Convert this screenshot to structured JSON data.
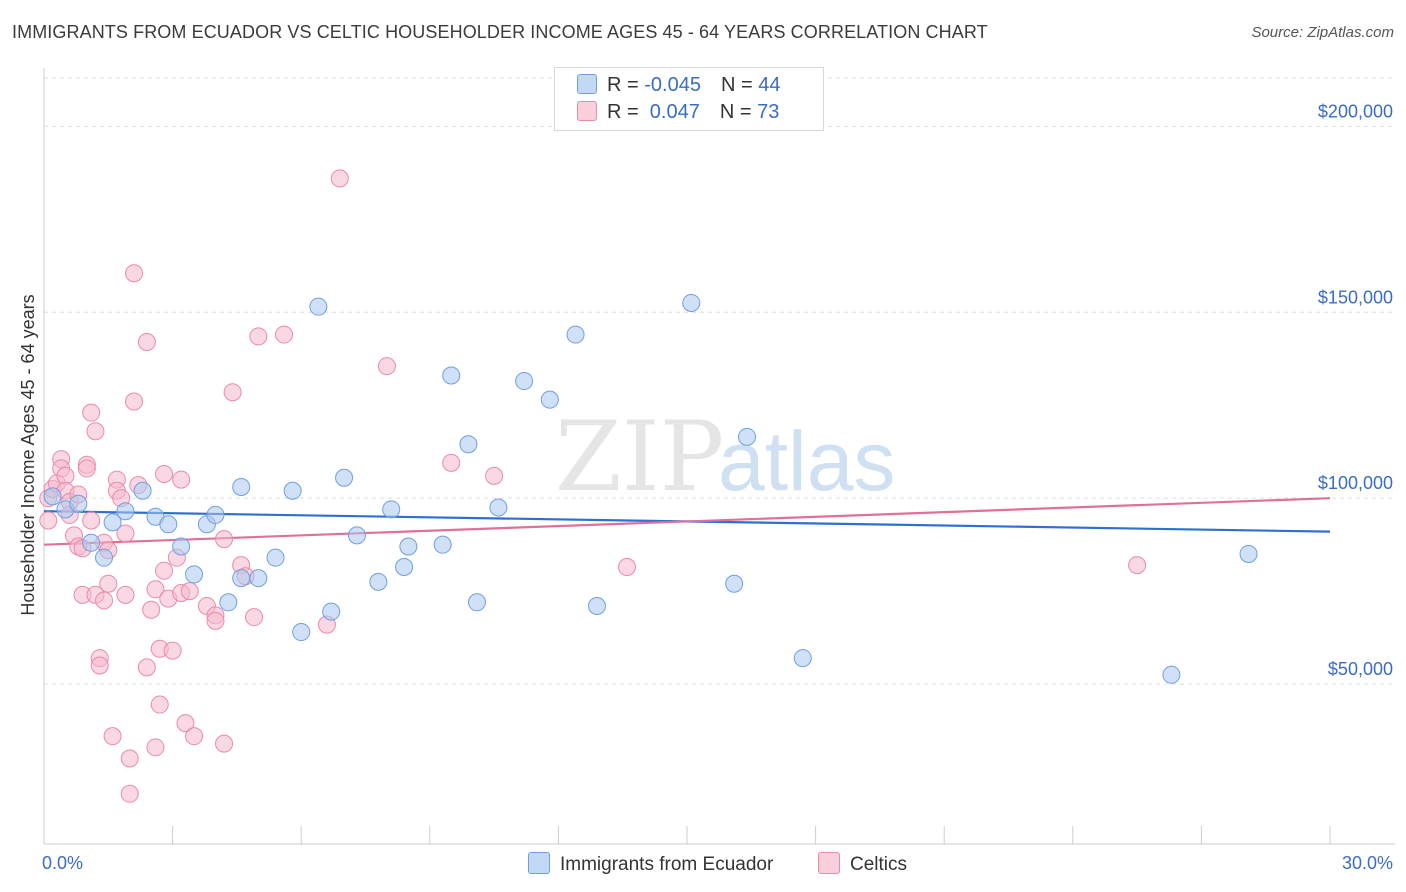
{
  "title": "IMMIGRANTS FROM ECUADOR VS CELTIC HOUSEHOLDER INCOME AGES 45 - 64 YEARS CORRELATION CHART",
  "source": "Source: ZipAtlas.com",
  "watermark": {
    "zip": "ZIP",
    "atlas": "atlas"
  },
  "legend": {
    "rows": [
      {
        "r_label": "R = ",
        "r_value": "-0.045",
        "n_label": "N = ",
        "n_value": "44"
      },
      {
        "r_label": "R = ",
        "r_value": " 0.047",
        "n_label": "N = ",
        "n_value": "73"
      }
    ]
  },
  "colors": {
    "blue_fill": "#aac8f0",
    "blue_stroke": "#6f9fe0",
    "blue_line": "#2f6fd0",
    "pink_fill": "#f6b8cc",
    "pink_stroke": "#ea8aaa",
    "pink_line": "#e0709a",
    "tick_text": "#3b6cc5",
    "grid": "#dddddd"
  },
  "chart_data": {
    "type": "scatter",
    "title": "IMMIGRANTS FROM ECUADOR VS CELTIC HOUSEHOLDER INCOME AGES 45 - 64 YEARS CORRELATION CHART",
    "xlabel": "",
    "ylabel": "Householder Income Ages 45 - 64 years",
    "xlim": [
      0,
      30
    ],
    "ylim": [
      7000,
      213000
    ],
    "x_tick_labels": [
      "0.0%",
      "30.0%"
    ],
    "y_ticks": [
      50000,
      100000,
      150000,
      200000
    ],
    "y_tick_labels": [
      "$50,000",
      "$100,000",
      "$150,000",
      "$200,000"
    ],
    "grid": true,
    "legend_position": "top-center",
    "series": [
      {
        "name": "Immigrants from Ecuador",
        "color": "#aac8f0",
        "trend": {
          "x": [
            0,
            30
          ],
          "y": [
            96500,
            91000
          ]
        },
        "points": [
          [
            0.2,
            100500
          ],
          [
            0.5,
            97000
          ],
          [
            0.8,
            98500
          ],
          [
            1.1,
            88000
          ],
          [
            1.4,
            84000
          ],
          [
            1.6,
            93500
          ],
          [
            1.9,
            96500
          ],
          [
            2.3,
            102000
          ],
          [
            2.6,
            95000
          ],
          [
            2.9,
            93000
          ],
          [
            3.2,
            87000
          ],
          [
            3.5,
            79500
          ],
          [
            3.8,
            93000
          ],
          [
            4.0,
            95500
          ],
          [
            4.3,
            72000
          ],
          [
            4.6,
            78500
          ],
          [
            4.6,
            103000
          ],
          [
            5.0,
            78500
          ],
          [
            5.4,
            84000
          ],
          [
            5.8,
            102000
          ],
          [
            6.0,
            64000
          ],
          [
            6.4,
            151500
          ],
          [
            6.7,
            69500
          ],
          [
            7.0,
            105500
          ],
          [
            7.3,
            90000
          ],
          [
            7.8,
            77500
          ],
          [
            8.1,
            97000
          ],
          [
            8.5,
            87000
          ],
          [
            8.4,
            81500
          ],
          [
            9.3,
            87500
          ],
          [
            9.5,
            133000
          ],
          [
            9.9,
            114500
          ],
          [
            10.1,
            72000
          ],
          [
            10.6,
            97500
          ],
          [
            11.2,
            131500
          ],
          [
            11.8,
            126500
          ],
          [
            12.4,
            144000
          ],
          [
            12.9,
            71000
          ],
          [
            15.1,
            152500
          ],
          [
            16.1,
            77000
          ],
          [
            16.4,
            116500
          ],
          [
            17.7,
            57000
          ],
          [
            26.3,
            52500
          ],
          [
            28.1,
            85000
          ]
        ]
      },
      {
        "name": "Celtics",
        "color": "#f6b8cc",
        "trend": {
          "x": [
            0,
            30
          ],
          "y": [
            87500,
            100000
          ]
        },
        "points": [
          [
            0.1,
            100000
          ],
          [
            0.1,
            94000
          ],
          [
            0.2,
            102500
          ],
          [
            0.3,
            104000
          ],
          [
            0.4,
            110500
          ],
          [
            0.4,
            108000
          ],
          [
            0.5,
            106000
          ],
          [
            0.5,
            102000
          ],
          [
            0.6,
            99000
          ],
          [
            0.6,
            95500
          ],
          [
            0.7,
            90000
          ],
          [
            0.8,
            101000
          ],
          [
            0.8,
            87000
          ],
          [
            0.9,
            86500
          ],
          [
            0.9,
            74000
          ],
          [
            1.0,
            109000
          ],
          [
            1.0,
            108000
          ],
          [
            1.1,
            123000
          ],
          [
            1.1,
            94000
          ],
          [
            1.2,
            74000
          ],
          [
            1.2,
            118000
          ],
          [
            1.3,
            57000
          ],
          [
            1.3,
            55000
          ],
          [
            1.4,
            72500
          ],
          [
            1.4,
            88000
          ],
          [
            1.5,
            77000
          ],
          [
            1.5,
            86000
          ],
          [
            1.6,
            36000
          ],
          [
            1.7,
            105000
          ],
          [
            1.7,
            102000
          ],
          [
            1.8,
            100000
          ],
          [
            1.9,
            74000
          ],
          [
            1.9,
            90500
          ],
          [
            2.0,
            30000
          ],
          [
            2.0,
            20500
          ],
          [
            2.1,
            160500
          ],
          [
            2.1,
            126000
          ],
          [
            2.2,
            103500
          ],
          [
            2.4,
            142000
          ],
          [
            2.4,
            54500
          ],
          [
            2.5,
            70000
          ],
          [
            2.6,
            75500
          ],
          [
            2.6,
            33000
          ],
          [
            2.7,
            59500
          ],
          [
            2.7,
            44500
          ],
          [
            2.8,
            106500
          ],
          [
            2.8,
            80500
          ],
          [
            2.9,
            73000
          ],
          [
            3.0,
            59000
          ],
          [
            3.1,
            84000
          ],
          [
            3.2,
            74500
          ],
          [
            3.2,
            105000
          ],
          [
            3.3,
            39500
          ],
          [
            3.4,
            75000
          ],
          [
            3.5,
            36000
          ],
          [
            3.8,
            71000
          ],
          [
            4.0,
            68500
          ],
          [
            4.0,
            67000
          ],
          [
            4.2,
            89000
          ],
          [
            4.2,
            34000
          ],
          [
            4.4,
            128500
          ],
          [
            4.6,
            82000
          ],
          [
            4.7,
            79000
          ],
          [
            4.9,
            68000
          ],
          [
            5.0,
            143500
          ],
          [
            5.6,
            144000
          ],
          [
            6.6,
            66000
          ],
          [
            6.9,
            186000
          ],
          [
            8.0,
            135500
          ],
          [
            9.5,
            109500
          ],
          [
            10.5,
            106000
          ],
          [
            13.6,
            81500
          ],
          [
            25.5,
            82000
          ]
        ]
      }
    ]
  },
  "bottom_legend": [
    "Immigrants from Ecuador",
    "Celtics"
  ]
}
